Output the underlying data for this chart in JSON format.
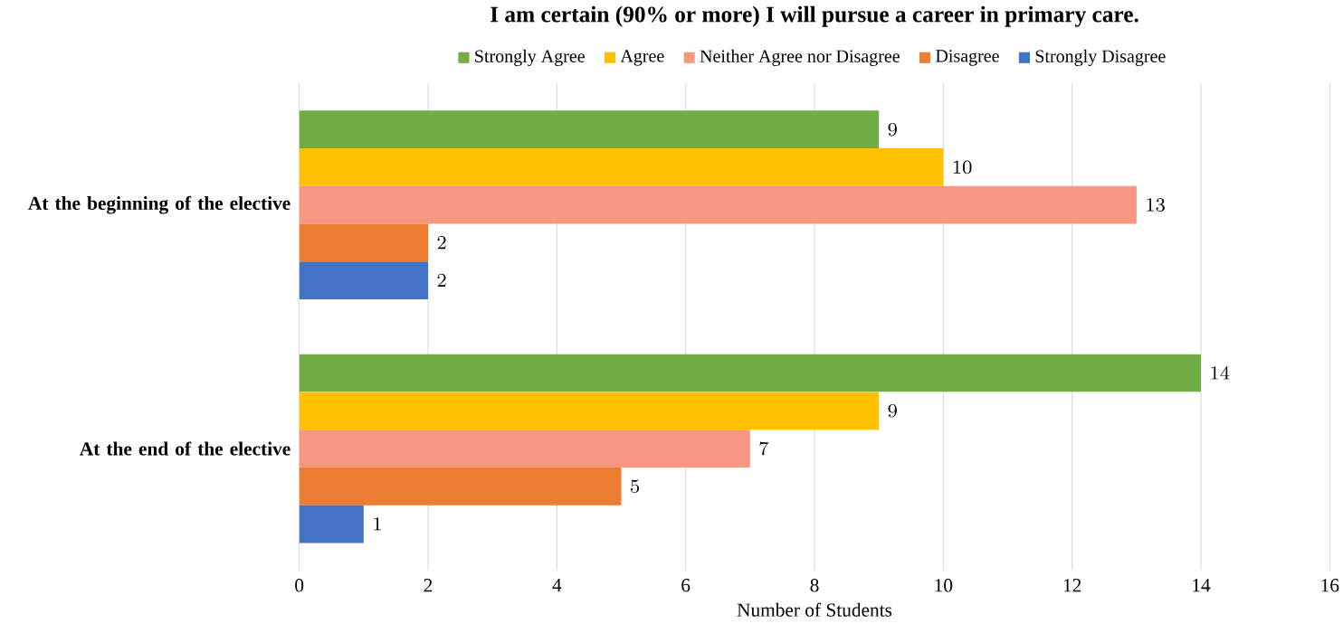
{
  "chart_data": {
    "type": "bar",
    "orientation": "horizontal",
    "title": "I am certain (90% or more) I will pursue a career in primary care.",
    "xlabel": "Number of Students",
    "categories": [
      "At the beginning of the elective",
      "At the end of the elective"
    ],
    "series": [
      {
        "name": "Strongly Agree",
        "color": "#70ad47",
        "values": [
          9,
          14
        ]
      },
      {
        "name": "Agree",
        "color": "#ffc000",
        "values": [
          10,
          9
        ]
      },
      {
        "name": "Neither Agree nor Disagree",
        "color": "#f8977f",
        "values": [
          13,
          7
        ]
      },
      {
        "name": "Disagree",
        "color": "#ed7d31",
        "values": [
          2,
          5
        ]
      },
      {
        "name": "Strongly Disagree",
        "color": "#4472c4",
        "values": [
          2,
          1
        ]
      }
    ],
    "xlim": [
      0,
      16
    ],
    "xticks": [
      0,
      2,
      4,
      6,
      8,
      10,
      12,
      14,
      16
    ],
    "grid": "x",
    "legend": "top",
    "data_labels": true
  }
}
